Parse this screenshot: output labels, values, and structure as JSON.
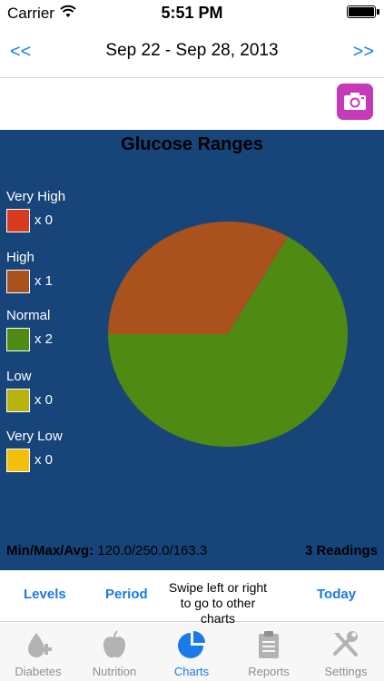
{
  "status_bar": {
    "carrier": "Carrier",
    "time": "5:51 PM"
  },
  "nav": {
    "prev": "<<",
    "title": "Sep 22 - Sep 28, 2013",
    "next": ">>"
  },
  "camera": {
    "icon": "camera-icon",
    "color": "#c53ab7"
  },
  "chart_data": {
    "type": "pie",
    "title": "Glucose Ranges",
    "categories": [
      "Very High",
      "High",
      "Normal",
      "Low",
      "Very Low"
    ],
    "values": [
      0,
      1,
      2,
      0,
      0
    ],
    "count_labels": [
      "x 0",
      "x 1",
      "x 2",
      "x 0",
      "x 0"
    ],
    "colors": [
      "#d63a1f",
      "#a9521d",
      "#4f8a13",
      "#b8b20c",
      "#f2c00a"
    ],
    "legend_position": "left"
  },
  "stats": {
    "label": "Min/Max/Avg:",
    "value": "120.0/250.0/163.3",
    "readings": "3 Readings"
  },
  "controls": {
    "levels": "Levels",
    "period": "Period",
    "hint_line1": "Swipe left or right",
    "hint_line2": "to go to other charts",
    "today": "Today"
  },
  "tabs": [
    {
      "label": "Diabetes",
      "icon": "diabetes-icon",
      "active": false
    },
    {
      "label": "Nutrition",
      "icon": "apple-icon",
      "active": false
    },
    {
      "label": "Charts",
      "icon": "pie-chart-icon",
      "active": true
    },
    {
      "label": "Reports",
      "icon": "clipboard-icon",
      "active": false
    },
    {
      "label": "Settings",
      "icon": "tools-icon",
      "active": false
    }
  ],
  "colors": {
    "accent": "#1a7ae8",
    "panel": "#17457a"
  }
}
